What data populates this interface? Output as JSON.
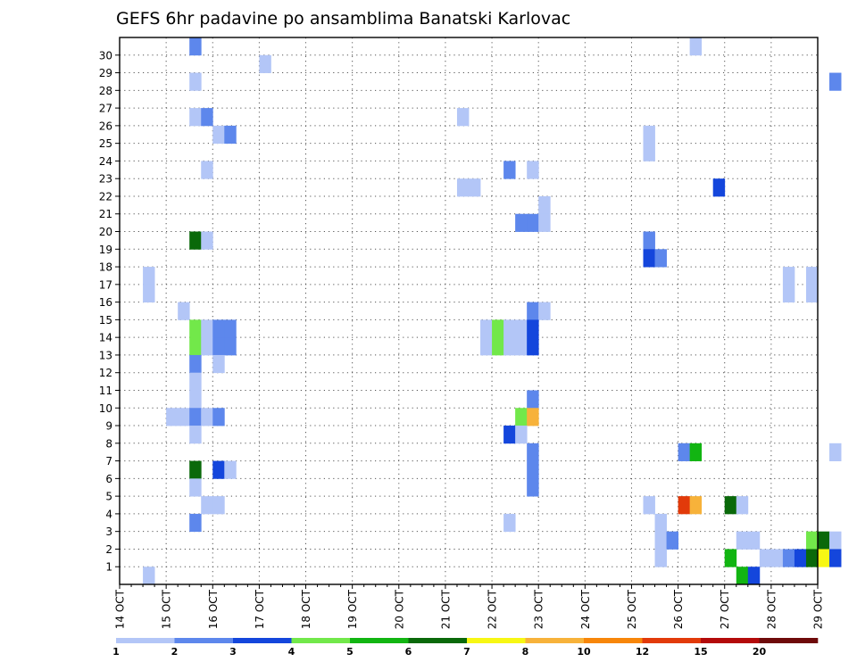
{
  "chart_data": {
    "type": "heatmap",
    "title": "GEFS 6hr padavine po ansamblima Banatski Karlovac",
    "x_tick_labels": [
      "14 OCT",
      "15 OCT",
      "16 OCT",
      "17 OCT",
      "18 OCT",
      "19 OCT",
      "20 OCT",
      "21 OCT",
      "22 OCT",
      "23 OCT",
      "24 OCT",
      "25 OCT",
      "26 OCT",
      "27 OCT",
      "28 OCT",
      "29 OCT"
    ],
    "x_start": "14 OCT",
    "x_step": "6hr",
    "y_tick_labels": [
      "1",
      "2",
      "3",
      "4",
      "5",
      "6",
      "7",
      "8",
      "9",
      "10",
      "11",
      "12",
      "13",
      "14",
      "15",
      "16",
      "17",
      "18",
      "19",
      "20",
      "21",
      "22",
      "23",
      "24",
      "25",
      "26",
      "27",
      "28",
      "29",
      "30"
    ],
    "grid": true,
    "colorbar": {
      "placement": "bottom",
      "labels": [
        "1",
        "2",
        "3",
        "4",
        "5",
        "6",
        "7",
        "8",
        "10",
        "12",
        "15",
        "20"
      ],
      "colors": [
        "#b3c6f7",
        "#5d87ec",
        "#1446dc",
        "#72e84a",
        "#12b512",
        "#0a690a",
        "#f7f714",
        "#f7b23a",
        "#f7860a",
        "#e23a0a",
        "#b30a0a",
        "#6e0a0a"
      ]
    },
    "cells": [
      [
        30,
        6,
        2
      ],
      [
        30,
        49,
        1
      ],
      [
        29,
        12,
        1
      ],
      [
        28,
        6,
        1
      ],
      [
        28,
        61,
        2
      ],
      [
        26,
        6,
        1
      ],
      [
        26,
        7,
        2
      ],
      [
        26,
        29,
        1
      ],
      [
        25,
        8,
        1
      ],
      [
        25,
        9,
        2
      ],
      [
        25,
        45,
        1
      ],
      [
        24,
        45,
        1
      ],
      [
        23,
        7,
        1
      ],
      [
        23,
        33,
        2
      ],
      [
        23,
        35,
        1
      ],
      [
        22,
        29,
        1
      ],
      [
        22,
        30,
        1
      ],
      [
        22,
        51,
        3
      ],
      [
        21,
        36,
        1
      ],
      [
        20,
        34,
        2
      ],
      [
        20,
        35,
        2
      ],
      [
        20,
        36,
        1
      ],
      [
        19,
        6,
        6
      ],
      [
        19,
        7,
        1
      ],
      [
        19,
        45,
        2
      ],
      [
        18,
        45,
        3
      ],
      [
        18,
        46,
        2
      ],
      [
        17,
        2,
        1
      ],
      [
        17,
        57,
        1
      ],
      [
        17,
        59,
        1
      ],
      [
        16,
        2,
        1
      ],
      [
        16,
        57,
        1
      ],
      [
        16,
        59,
        1
      ],
      [
        15,
        5,
        1
      ],
      [
        15,
        35,
        2
      ],
      [
        15,
        36,
        1
      ],
      [
        14,
        6,
        4
      ],
      [
        14,
        7,
        1
      ],
      [
        14,
        8,
        2
      ],
      [
        14,
        9,
        2
      ],
      [
        14,
        31,
        1
      ],
      [
        14,
        32,
        4
      ],
      [
        14,
        33,
        1
      ],
      [
        14,
        34,
        1
      ],
      [
        14,
        35,
        3
      ],
      [
        13,
        6,
        4
      ],
      [
        13,
        7,
        1
      ],
      [
        13,
        8,
        2
      ],
      [
        13,
        9,
        2
      ],
      [
        13,
        31,
        1
      ],
      [
        13,
        32,
        4
      ],
      [
        13,
        33,
        1
      ],
      [
        13,
        34,
        1
      ],
      [
        13,
        35,
        3
      ],
      [
        12,
        6,
        2
      ],
      [
        12,
        8,
        1
      ],
      [
        11,
        6,
        1
      ],
      [
        10,
        6,
        1
      ],
      [
        10,
        35,
        2
      ],
      [
        9,
        4,
        1
      ],
      [
        9,
        5,
        1
      ],
      [
        9,
        6,
        2
      ],
      [
        9,
        7,
        1
      ],
      [
        9,
        8,
        2
      ],
      [
        9,
        34,
        4
      ],
      [
        9,
        35,
        8
      ],
      [
        8,
        6,
        1
      ],
      [
        8,
        33,
        3
      ],
      [
        8,
        34,
        1
      ],
      [
        7,
        35,
        2
      ],
      [
        7,
        48,
        2
      ],
      [
        7,
        49,
        5
      ],
      [
        7,
        61,
        1
      ],
      [
        6,
        6,
        6
      ],
      [
        6,
        8,
        3
      ],
      [
        6,
        9,
        1
      ],
      [
        6,
        35,
        2
      ],
      [
        5,
        6,
        1
      ],
      [
        5,
        35,
        2
      ],
      [
        4,
        7,
        1
      ],
      [
        4,
        8,
        1
      ],
      [
        4,
        45,
        1
      ],
      [
        4,
        48,
        10
      ],
      [
        4,
        49,
        8
      ],
      [
        4,
        52,
        6
      ],
      [
        4,
        53,
        1
      ],
      [
        3,
        6,
        2
      ],
      [
        3,
        33,
        1
      ],
      [
        3,
        46,
        1
      ],
      [
        2,
        46,
        1
      ],
      [
        2,
        47,
        2
      ],
      [
        2,
        53,
        1
      ],
      [
        2,
        54,
        1
      ],
      [
        2,
        59,
        4
      ],
      [
        2,
        60,
        6
      ],
      [
        2,
        61,
        1
      ],
      [
        1,
        46,
        1
      ],
      [
        1,
        52,
        5
      ],
      [
        1,
        55,
        1
      ],
      [
        1,
        56,
        1
      ],
      [
        1,
        57,
        2
      ],
      [
        1,
        58,
        3
      ],
      [
        1,
        59,
        6
      ],
      [
        1,
        60,
        7
      ],
      [
        1,
        61,
        3
      ],
      [
        0,
        2,
        1
      ],
      [
        0,
        53,
        5
      ],
      [
        0,
        54,
        3
      ]
    ]
  }
}
